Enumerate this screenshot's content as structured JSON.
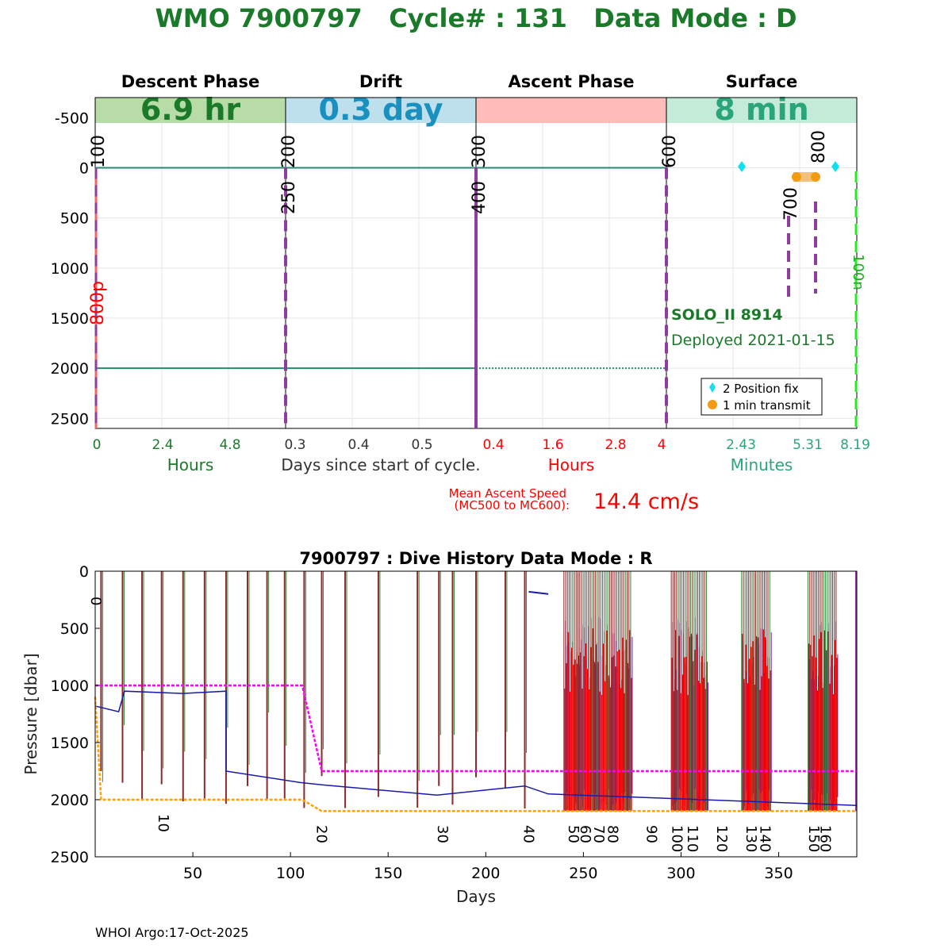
{
  "title": "WMO 7900797   Cycle# : 131   Data Mode : D",
  "footer": "WHOI Argo:17-Oct-2025",
  "colors": {
    "title": "#1a7a2a",
    "red": "#ff0000",
    "teal": "#2aa57a",
    "purple": "#8e3c9e"
  },
  "chart_data": [
    {
      "type": "line",
      "name": "cycle-phases",
      "phases": [
        {
          "title": "Descent Phase",
          "duration": "6.9 hr",
          "fill": "#b8dca8",
          "text_color": "#1a7a2a"
        },
        {
          "title": "Drift",
          "duration": "0.3 day",
          "fill": "#bde0ec",
          "text_color": "#1a90c0"
        },
        {
          "title": "Ascent Phase",
          "duration": "",
          "fill": "#ffbcb8",
          "text_color": "#ff0000"
        },
        {
          "title": "Surface",
          "duration": "8 min",
          "fill": "#c4ead8",
          "text_color": "#2aa57a"
        }
      ],
      "ylim": [
        2600,
        -700
      ],
      "yticks": [
        "-500",
        "0",
        "500",
        "1000",
        "1500",
        "2000",
        "2500"
      ],
      "ytick_values": [
        -500,
        0,
        500,
        1000,
        1500,
        2000,
        2500
      ],
      "xtick_groups": [
        {
          "labels": [
            "0",
            "2.4",
            "4.8"
          ],
          "color": "#1a7a2a",
          "unit": "Hours"
        },
        {
          "labels": [
            "0.3",
            "0.4",
            "0.5"
          ],
          "color": "#333333",
          "unit": "Days since start of cycle."
        },
        {
          "labels": [
            "0.4",
            "1.6",
            "2.8",
            "4"
          ],
          "color": "#ff0000",
          "unit": "Hours"
        },
        {
          "labels": [
            "2.43",
            "5.31",
            "8.19"
          ],
          "color": "#2aa57a",
          "unit": "Minutes"
        }
      ],
      "mission_codes": [
        "100",
        "200",
        "250",
        "300",
        "400",
        "600",
        "700",
        "800"
      ],
      "park_depth": 0,
      "profile_depth": 2000,
      "red_label": "800p",
      "green_label": "100n",
      "float_model": "SOLO_II 8914",
      "deployed": "Deployed 2021-01-15",
      "legend": [
        "2 Position fix",
        "1 min transmit"
      ],
      "ascent_speed_label": "Mean Ascent Speed",
      "ascent_speed_sub": "(MC500 to MC600):",
      "ascent_speed_value": "14.4 cm/s"
    },
    {
      "type": "line",
      "name": "dive-history",
      "title": "7900797 : Dive History      Data Mode : R",
      "xlabel": "Days",
      "ylabel": "Pressure [dbar]",
      "xlim": [
        0,
        390
      ],
      "ylim": [
        2500,
        0
      ],
      "xticks": [
        "50",
        "100",
        "150",
        "200",
        "250",
        "300",
        "350"
      ],
      "xtick_values": [
        50,
        100,
        150,
        200,
        250,
        300,
        350
      ],
      "yticks": [
        "0",
        "500",
        "1000",
        "1500",
        "2000",
        "2500"
      ],
      "ytick_values": [
        0,
        500,
        1000,
        1500,
        2000,
        2500
      ],
      "park_pressure": {
        "x": [
          0,
          106,
          116,
          390
        ],
        "y": [
          1000,
          1000,
          1750,
          1750
        ],
        "color": "#ff00ff"
      },
      "profile_pressure": {
        "x": [
          0,
          3,
          106,
          116,
          390
        ],
        "y": [
          1100,
          2000,
          2000,
          2100,
          2100
        ],
        "color": "#ffa000"
      },
      "cycle_labels": [
        {
          "label": "0",
          "day": 0.5
        },
        {
          "label": "10",
          "day": 35
        },
        {
          "label": "20",
          "day": 116
        },
        {
          "label": "30",
          "day": 178
        },
        {
          "label": "40",
          "day": 222
        },
        {
          "label": "50",
          "day": 245
        },
        {
          "label": "60",
          "day": 251
        },
        {
          "label": "70",
          "day": 258
        },
        {
          "label": "80",
          "day": 265
        },
        {
          "label": "90",
          "day": 285
        },
        {
          "label": "100",
          "day": 298
        },
        {
          "label": "110",
          "day": 306
        },
        {
          "label": "120",
          "day": 321
        },
        {
          "label": "130",
          "day": 336
        },
        {
          "label": "140",
          "day": 343
        },
        {
          "label": "150",
          "day": 368
        },
        {
          "label": "160",
          "day": 374
        }
      ]
    }
  ]
}
